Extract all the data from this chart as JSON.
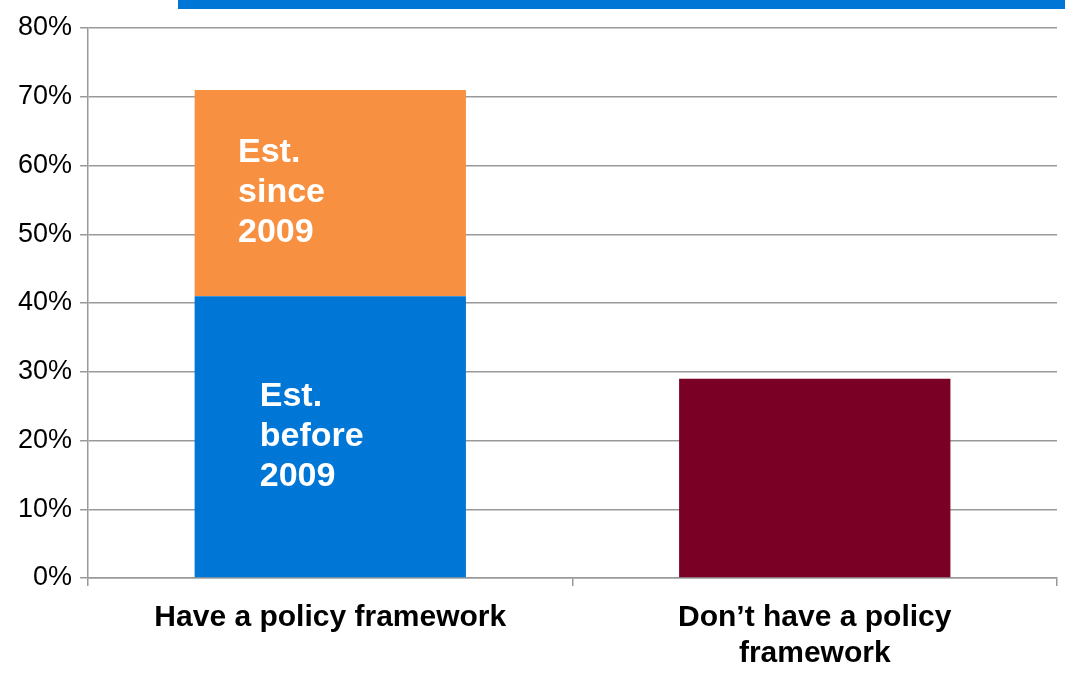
{
  "chart_data": {
    "type": "bar",
    "stacked": true,
    "categories": [
      "Have a policy framework",
      "Don’t have a policy framework"
    ],
    "series": [
      {
        "name": "Est. before 2009",
        "color": "#0077d6",
        "values": [
          41,
          null
        ]
      },
      {
        "name": "Est. since 2009",
        "color": "#f79141",
        "values": [
          30,
          null
        ]
      },
      {
        "color": "#7a0026",
        "values": [
          null,
          29
        ]
      }
    ],
    "ylim": [
      0,
      80
    ],
    "yticks": [
      {
        "value": 0,
        "label": "0%"
      },
      {
        "value": 10,
        "label": "10%"
      },
      {
        "value": 20,
        "label": "20%"
      },
      {
        "value": 30,
        "label": "30%"
      },
      {
        "value": 40,
        "label": "40%"
      },
      {
        "value": 50,
        "label": "50%"
      },
      {
        "value": 60,
        "label": "60%"
      },
      {
        "value": 70,
        "label": "70%"
      },
      {
        "value": 80,
        "label": "80%"
      }
    ],
    "grid": "y",
    "legend": false
  }
}
